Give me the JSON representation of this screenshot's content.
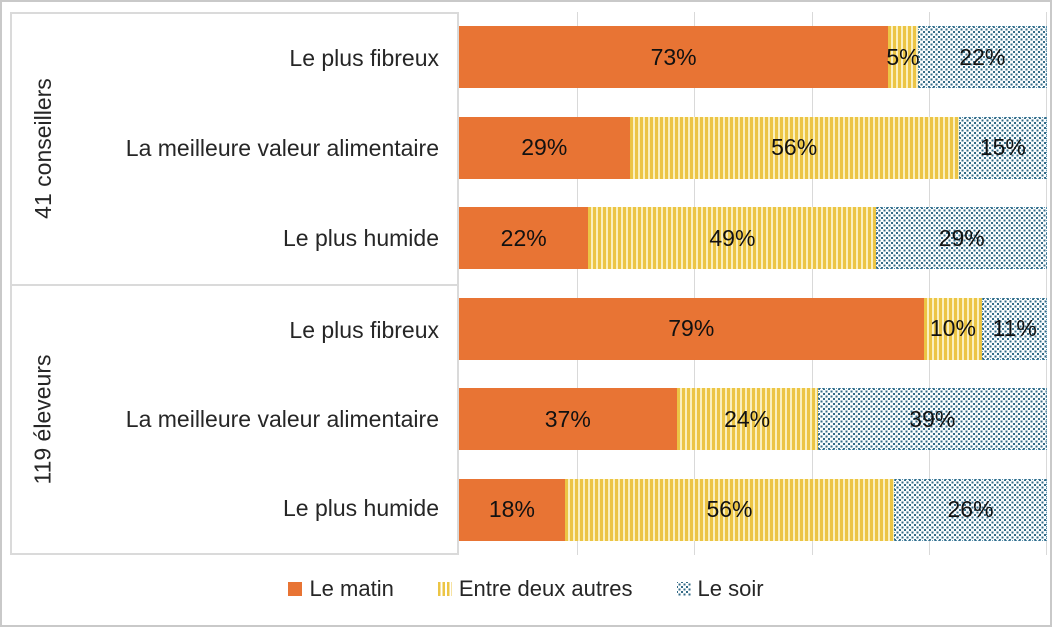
{
  "chart_data": {
    "type": "bar",
    "orientation": "horizontal",
    "stacked": true,
    "unit": "%",
    "xlim": [
      0,
      100
    ],
    "gridlines_percent": [
      20,
      40,
      60,
      80,
      100
    ],
    "gridline_color": "#d9d9d9",
    "legend_position": "bottom",
    "series": [
      {
        "name": "Le matin",
        "color": "#e87434",
        "pattern": "solid"
      },
      {
        "name": "Entre deux autres",
        "color": "#ecc545",
        "pattern": "vertical-stripes"
      },
      {
        "name": "Le soir",
        "color": "#336b87",
        "pattern": "dots"
      }
    ],
    "groups": [
      {
        "label": "41 conseillers",
        "rows": [
          {
            "category": "Le plus fibreux",
            "segments": [
              {
                "value": 73,
                "label": "73%"
              },
              {
                "value": 5,
                "label": "5%"
              },
              {
                "value": 22,
                "label": "22%"
              }
            ]
          },
          {
            "category": "La meilleure valeur alimentaire",
            "segments": [
              {
                "value": 29,
                "label": "29%"
              },
              {
                "value": 56,
                "label": "56%"
              },
              {
                "value": 15,
                "label": "15%"
              }
            ]
          },
          {
            "category": "Le plus humide",
            "segments": [
              {
                "value": 22,
                "label": "22%"
              },
              {
                "value": 49,
                "label": "49%"
              },
              {
                "value": 29,
                "label": "29%"
              }
            ]
          }
        ]
      },
      {
        "label": "119 éleveurs",
        "rows": [
          {
            "category": "Le plus fibreux",
            "segments": [
              {
                "value": 79,
                "label": "79%"
              },
              {
                "value": 10,
                "label": "10%"
              },
              {
                "value": 11,
                "label": "11%"
              }
            ]
          },
          {
            "category": "La meilleure valeur alimentaire",
            "segments": [
              {
                "value": 37,
                "label": "37%"
              },
              {
                "value": 24,
                "label": "24%"
              },
              {
                "value": 39,
                "label": "39%"
              }
            ]
          },
          {
            "category": "Le plus humide",
            "segments": [
              {
                "value": 18,
                "label": "18%"
              },
              {
                "value": 56,
                "label": "56%"
              },
              {
                "value": 26,
                "label": "26%"
              }
            ]
          }
        ]
      }
    ]
  },
  "legend": {
    "items": [
      {
        "label": "Le matin"
      },
      {
        "label": "Entre deux autres"
      },
      {
        "label": "Le soir"
      }
    ]
  }
}
